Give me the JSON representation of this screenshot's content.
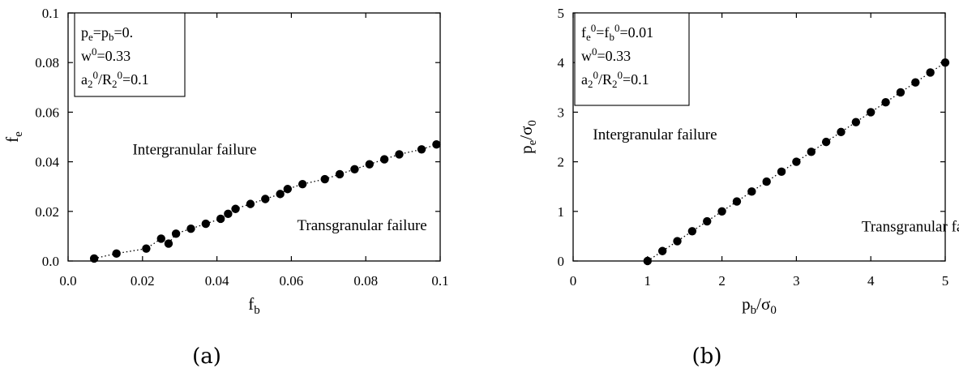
{
  "chart_data": [
    {
      "type": "scatter",
      "panel": "a",
      "caption": "(a)",
      "xlim": [
        0.0,
        0.1
      ],
      "ylim": [
        0.0,
        0.1
      ],
      "xticks": [
        "0.0",
        "0.02",
        "0.04",
        "0.06",
        "0.08",
        "0.1"
      ],
      "yticks": [
        "0.0",
        "0.02",
        "0.04",
        "0.06",
        "0.08",
        "0.1"
      ],
      "xlabel": {
        "base": "f",
        "sub": "b"
      },
      "ylabel": {
        "base": "f",
        "sub": "e"
      },
      "legend_lines": [
        [
          {
            "t": "p"
          },
          {
            "t": "e",
            "s": "sub"
          },
          {
            "t": "=p"
          },
          {
            "t": "b",
            "s": "sub"
          },
          {
            "t": "=0."
          }
        ],
        [
          {
            "t": "w"
          },
          {
            "t": "0",
            "s": "sup"
          },
          {
            "t": "=0.33"
          }
        ],
        [
          {
            "t": "a"
          },
          {
            "t": "2",
            "s": "sub"
          },
          {
            "t": "0",
            "s": "sup"
          },
          {
            "t": "/R"
          },
          {
            "t": "2",
            "s": "sub"
          },
          {
            "t": "0",
            "s": "sup"
          },
          {
            "t": "=0.1"
          }
        ]
      ],
      "legend_placement": "top-left",
      "annotations": [
        {
          "text": "Intergranular failure",
          "x": 0.034,
          "y": 0.043
        },
        {
          "text": "Transgranular failure",
          "x": 0.079,
          "y": 0.0125
        }
      ],
      "points": [
        [
          0.007,
          0.001
        ],
        [
          0.013,
          0.003
        ],
        [
          0.021,
          0.005
        ],
        [
          0.025,
          0.009
        ],
        [
          0.027,
          0.007
        ],
        [
          0.029,
          0.011
        ],
        [
          0.033,
          0.013
        ],
        [
          0.037,
          0.015
        ],
        [
          0.041,
          0.017
        ],
        [
          0.043,
          0.019
        ],
        [
          0.045,
          0.021
        ],
        [
          0.049,
          0.023
        ],
        [
          0.053,
          0.025
        ],
        [
          0.057,
          0.027
        ],
        [
          0.059,
          0.029
        ],
        [
          0.063,
          0.031
        ],
        [
          0.069,
          0.033
        ],
        [
          0.073,
          0.035
        ],
        [
          0.077,
          0.037
        ],
        [
          0.081,
          0.039
        ],
        [
          0.085,
          0.041
        ],
        [
          0.089,
          0.043
        ],
        [
          0.095,
          0.045
        ],
        [
          0.099,
          0.047
        ]
      ]
    },
    {
      "type": "scatter",
      "panel": "b",
      "caption": "(b)",
      "xlim": [
        0,
        5
      ],
      "ylim": [
        0,
        5
      ],
      "xticks": [
        "0",
        "1",
        "2",
        "3",
        "4",
        "5"
      ],
      "yticks": [
        "0",
        "1",
        "2",
        "3",
        "4",
        "5"
      ],
      "xlabel": {
        "base": "p",
        "sub": "b",
        "rest": "/σ",
        "sub2": "0"
      },
      "ylabel": {
        "base": "p",
        "sub": "e",
        "rest": "/σ",
        "sub2": "0"
      },
      "legend_lines": [
        [
          {
            "t": "f"
          },
          {
            "t": "e",
            "s": "sub"
          },
          {
            "t": "0",
            "s": "sup"
          },
          {
            "t": "=f"
          },
          {
            "t": "b",
            "s": "sub"
          },
          {
            "t": "0",
            "s": "sup"
          },
          {
            "t": "=0.01"
          }
        ],
        [
          {
            "t": "w"
          },
          {
            "t": "0",
            "s": "sup"
          },
          {
            "t": "=0.33"
          }
        ],
        [
          {
            "t": "a"
          },
          {
            "t": "2",
            "s": "sub"
          },
          {
            "t": "0",
            "s": "sup"
          },
          {
            "t": "/R"
          },
          {
            "t": "2",
            "s": "sub"
          },
          {
            "t": "0",
            "s": "sup"
          },
          {
            "t": "=0.1"
          }
        ]
      ],
      "legend_placement": "top-left",
      "annotations": [
        {
          "text": "Intergranular failure",
          "x": 1.1,
          "y": 2.45
        },
        {
          "text": "Transgranular failure",
          "x": 4.75,
          "y": 0.6
        }
      ],
      "points": [
        [
          1.0,
          0.0
        ],
        [
          1.2,
          0.2
        ],
        [
          1.4,
          0.4
        ],
        [
          1.6,
          0.6
        ],
        [
          1.8,
          0.8
        ],
        [
          2.0,
          1.0
        ],
        [
          2.2,
          1.2
        ],
        [
          2.4,
          1.4
        ],
        [
          2.6,
          1.6
        ],
        [
          2.8,
          1.8
        ],
        [
          3.0,
          2.0
        ],
        [
          3.2,
          2.2
        ],
        [
          3.4,
          2.4
        ],
        [
          3.6,
          2.6
        ],
        [
          3.8,
          2.8
        ],
        [
          4.0,
          3.0
        ],
        [
          4.2,
          3.2
        ],
        [
          4.4,
          3.4
        ],
        [
          4.6,
          3.6
        ],
        [
          4.8,
          3.8
        ],
        [
          5.0,
          4.0
        ]
      ]
    }
  ]
}
